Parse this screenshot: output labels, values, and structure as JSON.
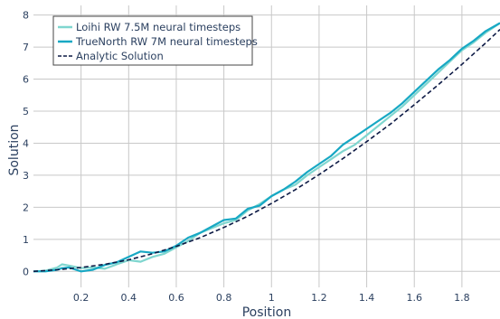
{
  "chart_data": {
    "type": "line",
    "xlabel": "Position",
    "ylabel": "Solution",
    "xlim": [
      0,
      1.96
    ],
    "ylim": [
      -0.5,
      8.3
    ],
    "xticks": [
      0.2,
      0.4,
      0.6,
      0.8,
      1,
      1.2,
      1.4,
      1.6,
      1.8
    ],
    "xtick_labels": [
      "0.2",
      "0.4",
      "0.6",
      "0.8",
      "1",
      "1.2",
      "1.4",
      "1.6",
      "1.8"
    ],
    "yticks": [
      0,
      1,
      2,
      3,
      4,
      5,
      6,
      7,
      8
    ],
    "ytick_labels": [
      "0",
      "1",
      "2",
      "3",
      "4",
      "5",
      "6",
      "7",
      "8"
    ],
    "grid": true,
    "legend_position": "top-left",
    "series": [
      {
        "name": "Loihi RW 7.5M neural timesteps",
        "color": "#7fd6cf",
        "style": "solid",
        "points": [
          [
            0,
            0
          ],
          [
            0.05,
            0.02
          ],
          [
            0.1,
            0.12
          ],
          [
            0.12,
            0.22
          ],
          [
            0.15,
            0.18
          ],
          [
            0.2,
            0.1
          ],
          [
            0.25,
            0.12
          ],
          [
            0.3,
            0.08
          ],
          [
            0.35,
            0.22
          ],
          [
            0.4,
            0.35
          ],
          [
            0.45,
            0.3
          ],
          [
            0.5,
            0.45
          ],
          [
            0.55,
            0.55
          ],
          [
            0.6,
            0.75
          ],
          [
            0.65,
            0.95
          ],
          [
            0.7,
            1.2
          ],
          [
            0.75,
            1.35
          ],
          [
            0.8,
            1.5
          ],
          [
            0.85,
            1.6
          ],
          [
            0.9,
            1.9
          ],
          [
            0.95,
            2.1
          ],
          [
            1.0,
            2.35
          ],
          [
            1.05,
            2.55
          ],
          [
            1.1,
            2.7
          ],
          [
            1.15,
            3.0
          ],
          [
            1.2,
            3.25
          ],
          [
            1.25,
            3.5
          ],
          [
            1.3,
            3.75
          ],
          [
            1.35,
            3.95
          ],
          [
            1.4,
            4.25
          ],
          [
            1.45,
            4.55
          ],
          [
            1.5,
            4.85
          ],
          [
            1.55,
            5.15
          ],
          [
            1.6,
            5.5
          ],
          [
            1.65,
            5.85
          ],
          [
            1.7,
            6.2
          ],
          [
            1.75,
            6.55
          ],
          [
            1.8,
            6.9
          ],
          [
            1.85,
            7.15
          ],
          [
            1.9,
            7.45
          ],
          [
            1.96,
            7.75
          ]
        ]
      },
      {
        "name": "TrueNorth RW 7M neural timesteps",
        "color": "#17a8c4",
        "style": "solid",
        "points": [
          [
            0,
            0
          ],
          [
            0.05,
            0.0
          ],
          [
            0.1,
            0.05
          ],
          [
            0.12,
            0.1
          ],
          [
            0.15,
            0.12
          ],
          [
            0.2,
            0.0
          ],
          [
            0.25,
            0.05
          ],
          [
            0.3,
            0.2
          ],
          [
            0.35,
            0.28
          ],
          [
            0.4,
            0.45
          ],
          [
            0.45,
            0.62
          ],
          [
            0.5,
            0.58
          ],
          [
            0.55,
            0.62
          ],
          [
            0.6,
            0.8
          ],
          [
            0.65,
            1.05
          ],
          [
            0.7,
            1.2
          ],
          [
            0.75,
            1.4
          ],
          [
            0.8,
            1.6
          ],
          [
            0.85,
            1.65
          ],
          [
            0.9,
            1.95
          ],
          [
            0.95,
            2.05
          ],
          [
            1.0,
            2.35
          ],
          [
            1.05,
            2.55
          ],
          [
            1.1,
            2.8
          ],
          [
            1.15,
            3.1
          ],
          [
            1.2,
            3.35
          ],
          [
            1.25,
            3.6
          ],
          [
            1.3,
            3.95
          ],
          [
            1.35,
            4.2
          ],
          [
            1.4,
            4.45
          ],
          [
            1.45,
            4.7
          ],
          [
            1.5,
            4.95
          ],
          [
            1.55,
            5.25
          ],
          [
            1.6,
            5.6
          ],
          [
            1.65,
            5.95
          ],
          [
            1.7,
            6.3
          ],
          [
            1.75,
            6.6
          ],
          [
            1.8,
            6.95
          ],
          [
            1.85,
            7.2
          ],
          [
            1.9,
            7.5
          ],
          [
            1.96,
            7.75
          ]
        ]
      },
      {
        "name": "Analytic Solution",
        "color": "#0d1a45",
        "style": "dash",
        "points": [
          [
            0,
            0
          ],
          [
            0.1,
            0.05
          ],
          [
            0.2,
            0.12
          ],
          [
            0.3,
            0.22
          ],
          [
            0.4,
            0.36
          ],
          [
            0.5,
            0.55
          ],
          [
            0.6,
            0.78
          ],
          [
            0.7,
            1.05
          ],
          [
            0.8,
            1.37
          ],
          [
            0.9,
            1.72
          ],
          [
            1.0,
            2.12
          ],
          [
            1.1,
            2.55
          ],
          [
            1.2,
            3.02
          ],
          [
            1.3,
            3.52
          ],
          [
            1.4,
            4.05
          ],
          [
            1.5,
            4.6
          ],
          [
            1.6,
            5.2
          ],
          [
            1.7,
            5.82
          ],
          [
            1.8,
            6.46
          ],
          [
            1.9,
            7.13
          ],
          [
            1.96,
            7.55
          ]
        ]
      }
    ]
  }
}
